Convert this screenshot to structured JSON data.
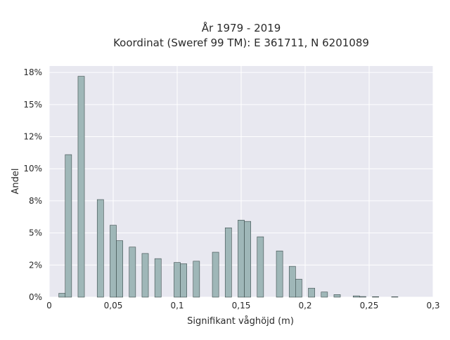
{
  "chart_data": {
    "type": "bar",
    "title_line1": "År 1979 - 2019",
    "title_line2": "Koordinat (Sweref 99 TM): E 361711, N 6201089",
    "xlabel": "Signifikant våghöjd (m)",
    "ylabel": "Andel",
    "xlim": [
      0,
      0.3
    ],
    "ylim": [
      0,
      0.18
    ],
    "x_ticks": [
      {
        "value": 0,
        "label": "0"
      },
      {
        "value": 0.05,
        "label": "0,05"
      },
      {
        "value": 0.1,
        "label": "0,1"
      },
      {
        "value": 0.15,
        "label": "0,15"
      },
      {
        "value": 0.2,
        "label": "0,2"
      },
      {
        "value": 0.25,
        "label": "0,25"
      },
      {
        "value": 0.3,
        "label": "0,3"
      }
    ],
    "y_ticks": [
      {
        "value": 0,
        "label": "0%"
      },
      {
        "value": 0.025,
        "label": "2%"
      },
      {
        "value": 0.05,
        "label": "5%"
      },
      {
        "value": 0.075,
        "label": "8%"
      },
      {
        "value": 0.1,
        "label": "10%"
      },
      {
        "value": 0.125,
        "label": "12%"
      },
      {
        "value": 0.15,
        "label": "15%"
      },
      {
        "value": 0.175,
        "label": "18%"
      }
    ],
    "bin_width": 0.005,
    "bars": [
      {
        "x": 0.01,
        "value": 0.003
      },
      {
        "x": 0.015,
        "value": 0.111
      },
      {
        "x": 0.025,
        "value": 0.172
      },
      {
        "x": 0.04,
        "value": 0.076
      },
      {
        "x": 0.05,
        "value": 0.056
      },
      {
        "x": 0.055,
        "value": 0.044
      },
      {
        "x": 0.065,
        "value": 0.039
      },
      {
        "x": 0.075,
        "value": 0.034
      },
      {
        "x": 0.085,
        "value": 0.03
      },
      {
        "x": 0.1,
        "value": 0.027
      },
      {
        "x": 0.105,
        "value": 0.026
      },
      {
        "x": 0.115,
        "value": 0.028
      },
      {
        "x": 0.13,
        "value": 0.035
      },
      {
        "x": 0.14,
        "value": 0.054
      },
      {
        "x": 0.15,
        "value": 0.06
      },
      {
        "x": 0.155,
        "value": 0.059
      },
      {
        "x": 0.165,
        "value": 0.047
      },
      {
        "x": 0.18,
        "value": 0.036
      },
      {
        "x": 0.19,
        "value": 0.024
      },
      {
        "x": 0.195,
        "value": 0.014
      },
      {
        "x": 0.205,
        "value": 0.007
      },
      {
        "x": 0.215,
        "value": 0.004
      },
      {
        "x": 0.225,
        "value": 0.002
      },
      {
        "x": 0.24,
        "value": 0.001
      },
      {
        "x": 0.245,
        "value": 0.0005
      },
      {
        "x": 0.255,
        "value": 0.0004
      },
      {
        "x": 0.27,
        "value": 0.0003
      }
    ],
    "grid": true,
    "colors": {
      "bar_fill": "#9fb7b8",
      "bar_stroke": "#3a4a4a",
      "plot_bg": "#e8e8f0",
      "grid": "#ffffff"
    }
  }
}
